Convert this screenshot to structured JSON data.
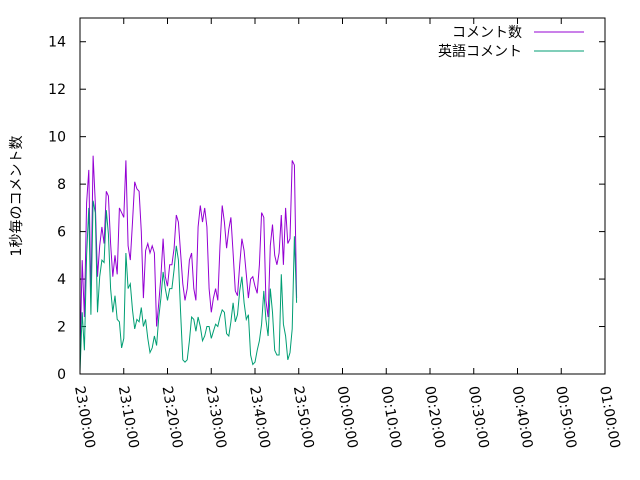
{
  "chart_data": {
    "type": "line",
    "title": "",
    "xlabel": "",
    "ylabel": "1秒毎のコメント数",
    "xlim": [
      "23:00:00",
      "01:00:00"
    ],
    "ylim": [
      0,
      15
    ],
    "yticks": [
      "0",
      "2",
      "4",
      "6",
      "8",
      "10",
      "12",
      "14"
    ],
    "xticks": [
      "23:00:00",
      "23:10:00",
      "23:20:00",
      "23:30:00",
      "23:40:00",
      "23:50:00",
      "00:00:00",
      "00:10:00",
      "00:20:00",
      "00:30:00",
      "00:40:00",
      "00:50:00",
      "01:00:00"
    ],
    "grid": false,
    "legend": "top-right",
    "series": [
      {
        "name": "コメント数",
        "color": "#9400d3",
        "x_start": "23:00:00",
        "x_step_seconds": 30,
        "values": [
          0.8,
          4.8,
          2.4,
          7.2,
          8.6,
          3.2,
          9.2,
          7.2,
          4.1,
          5.4,
          6.2,
          5.5,
          7.7,
          7.5,
          5.5,
          4.1,
          5.0,
          4.2,
          7.0,
          6.8,
          6.6,
          9.0,
          5.4,
          4.8,
          6.4,
          8.1,
          7.8,
          7.7,
          6.0,
          3.2,
          5.2,
          5.5,
          5.1,
          5.4,
          5.1,
          2.0,
          3.0,
          4.1,
          5.7,
          4.1,
          3.7,
          4.6,
          4.6,
          5.3,
          6.7,
          6.4,
          5.1,
          3.8,
          3.1,
          3.6,
          4.8,
          5.1,
          3.6,
          3.1,
          6.2,
          7.1,
          6.4,
          7.0,
          6.2,
          3.6,
          2.6,
          3.2,
          3.6,
          3.1,
          5.4,
          7.1,
          6.4,
          5.3,
          6.1,
          6.6,
          5.1,
          3.5,
          3.3,
          4.6,
          5.7,
          5.2,
          4.2,
          3.2,
          4.0,
          4.1,
          3.7,
          3.4,
          4.6,
          6.8,
          6.6,
          3.1,
          2.4,
          5.4,
          6.3,
          5.0,
          4.6,
          5.1,
          6.7,
          4.6,
          7.0,
          5.5,
          5.7,
          9.0,
          8.8,
          3.2
        ]
      },
      {
        "name": "英語コメント",
        "color": "#009e73",
        "x_start": "23:00:00",
        "x_step_seconds": 30,
        "values": [
          0.1,
          2.6,
          1.0,
          5.0,
          7.0,
          2.5,
          7.3,
          6.8,
          2.6,
          4.1,
          4.8,
          4.7,
          6.9,
          5.9,
          3.6,
          2.6,
          3.3,
          2.3,
          2.2,
          1.1,
          1.5,
          5.1,
          3.6,
          3.8,
          2.7,
          1.9,
          2.3,
          2.2,
          2.8,
          2.0,
          2.3,
          1.5,
          0.9,
          1.1,
          1.6,
          1.2,
          2.4,
          3.2,
          4.3,
          3.6,
          3.1,
          3.6,
          3.6,
          4.4,
          5.4,
          4.8,
          2.6,
          0.6,
          0.5,
          0.6,
          1.4,
          2.4,
          2.3,
          1.8,
          2.4,
          2.0,
          1.4,
          1.6,
          2.0,
          2.0,
          1.5,
          1.8,
          2.1,
          2.0,
          2.4,
          2.7,
          2.6,
          1.7,
          1.6,
          2.2,
          3.0,
          2.2,
          2.5,
          3.5,
          4.1,
          3.0,
          2.3,
          2.5,
          0.8,
          0.4,
          0.5,
          1.0,
          1.4,
          2.1,
          3.5,
          2.3,
          1.6,
          3.6,
          2.6,
          1.0,
          0.8,
          0.8,
          4.2,
          2.1,
          1.6,
          0.6,
          0.9,
          1.9,
          5.8,
          3.0
        ]
      }
    ]
  }
}
